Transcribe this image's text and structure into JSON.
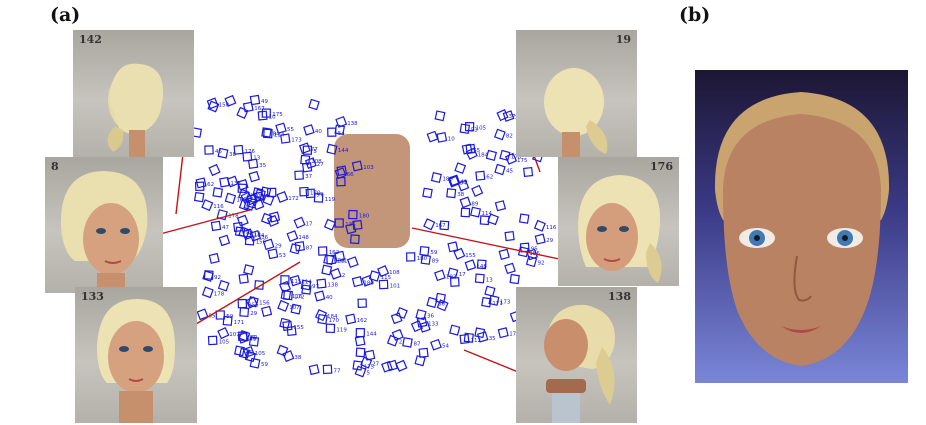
{
  "panels": {
    "a_label": "(a)",
    "b_label": "(b)"
  },
  "photos": [
    {
      "id": "142",
      "label": "142"
    },
    {
      "id": "19",
      "label": "19"
    },
    {
      "id": "8",
      "label": "8"
    },
    {
      "id": "176",
      "label": "176"
    },
    {
      "id": "133",
      "label": "133"
    },
    {
      "id": "138",
      "label": "138"
    }
  ],
  "camera_labels": [
    "184",
    "175",
    "114",
    "116",
    "89",
    "105",
    "59",
    "45",
    "37",
    "155",
    "38",
    "49",
    "107",
    "29",
    "178",
    "150",
    "156",
    "167",
    "62",
    "55",
    "10",
    "53",
    "95",
    "82",
    "84",
    "47",
    "17",
    "171",
    "173",
    "148",
    "13",
    "112",
    "176",
    "92",
    "35",
    "172",
    "133",
    "87",
    "36",
    "115",
    "66",
    "101",
    "103",
    "180",
    "54",
    "119",
    "136",
    "170",
    "138",
    "108",
    "77",
    "5",
    "2",
    "40",
    "27",
    "162",
    "144",
    "97",
    "180"
  ],
  "colors": {
    "camera": "#1a1adc",
    "arrow": "#c0141a",
    "mesh_skin": "#b98262",
    "background_render": "#5c63c6"
  }
}
